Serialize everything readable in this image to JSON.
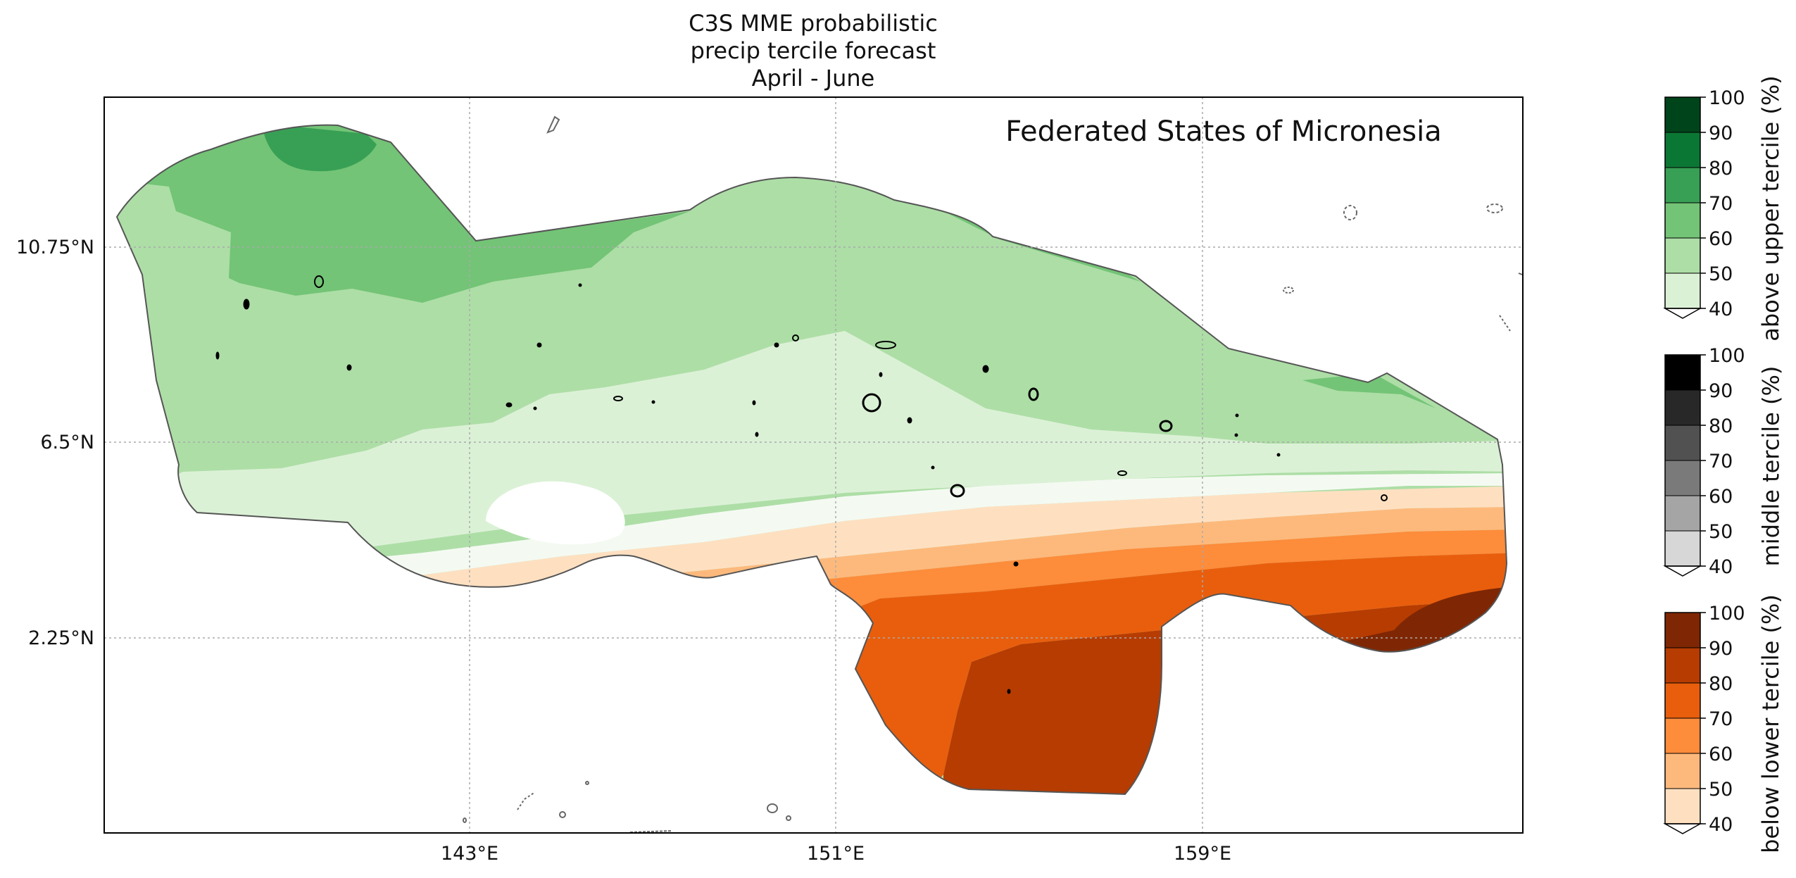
{
  "title": {
    "line1": "C3S MME probabilistic",
    "line2": "precip tercile forecast",
    "line3": "April - June"
  },
  "map": {
    "region_name": "Federated States of Micronesia",
    "x_ticks": [
      "143°E",
      "151°E",
      "159°E"
    ],
    "y_ticks": [
      "10.75°N",
      "6.5°N",
      "2.25°N"
    ],
    "gridlines": true
  },
  "colorbars": [
    {
      "label": "above upper tercile (%)",
      "ticks": [
        "100",
        "90",
        "80",
        "70",
        "60",
        "50",
        "40"
      ],
      "colors": [
        "#dbf1d6",
        "#addea6",
        "#73c476",
        "#37a055",
        "#0b7734",
        "#00441b"
      ]
    },
    {
      "label": "middle tercile (%)",
      "ticks": [
        "100",
        "90",
        "80",
        "70",
        "60",
        "50",
        "40"
      ],
      "colors": [
        "#d7d7d7",
        "#a5a5a5",
        "#7a7a7a",
        "#515151",
        "#282828",
        "#000000"
      ]
    },
    {
      "label": "below lower tercile (%)",
      "ticks": [
        "100",
        "90",
        "80",
        "70",
        "60",
        "50",
        "40"
      ],
      "colors": [
        "#fee0c1",
        "#fdb97c",
        "#fd8c3b",
        "#e95e0d",
        "#b63c02",
        "#7f2704"
      ]
    }
  ],
  "colors": {
    "background_land_fill": "#ffffff",
    "outline": "#555555",
    "grid": "#aaaaaa"
  }
}
